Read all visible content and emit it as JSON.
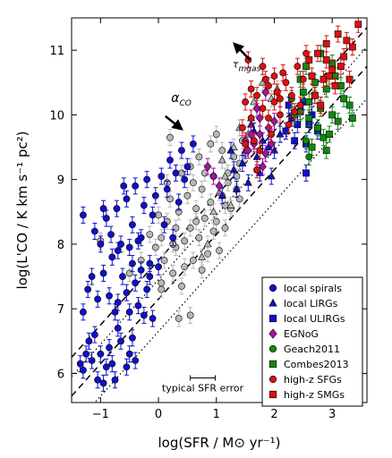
{
  "chart_data": {
    "type": "scatter",
    "xlabel": "log(SFR / M⊙ yr⁻¹)",
    "ylabel": "log(L'CO / K km s⁻¹ pc²)",
    "xlim": [
      -1.5,
      3.6
    ],
    "ylim": [
      5.55,
      11.5
    ],
    "xticks": [
      "−1",
      "0",
      "1",
      "2",
      "3"
    ],
    "xtick_values": [
      -1,
      0,
      1,
      2,
      3
    ],
    "yticks": [
      "6",
      "7",
      "8",
      "9",
      "10",
      "11"
    ],
    "ytick_values": [
      6,
      7,
      8,
      9,
      10,
      11
    ],
    "grid": false,
    "legend_position": "bottom-right",
    "reference_lines": [
      {
        "style": "dashed",
        "slope": 1,
        "intercept": 7.75
      },
      {
        "style": "dashed",
        "slope": 1,
        "intercept": 7.15
      },
      {
        "style": "dotted",
        "slope": 1,
        "intercept": 7.45
      },
      {
        "style": "dotted",
        "slope": 1,
        "intercept": 6.65
      }
    ],
    "annotations": {
      "tau": {
        "label": "τmgas",
        "sub": "mgas",
        "main": "τ",
        "x": 1.28,
        "y": 10.73,
        "arrow_from": [
          1.58,
          10.85
        ],
        "arrow_to": [
          1.31,
          11.1
        ]
      },
      "alpha": {
        "main": "α",
        "sub": "CO",
        "x": 0.22,
        "y": 10.2,
        "arrow_from": [
          0.12,
          9.98
        ],
        "arrow_to": [
          0.4,
          9.78
        ]
      },
      "sfr_error": {
        "label": "typical SFR error",
        "x_from": 0.55,
        "x_to": 0.98,
        "y": 5.82
      }
    },
    "series": [
      {
        "name": "local spirals",
        "marker": "circle",
        "color": "#1010cc",
        "points": [
          [
            -1.35,
            6.15
          ],
          [
            -1.3,
            6.05
          ],
          [
            -1.25,
            6.3
          ],
          [
            -1.2,
            6.5
          ],
          [
            -1.15,
            6.2
          ],
          [
            -1.1,
            6.6
          ],
          [
            -1.05,
            5.9
          ],
          [
            -1.0,
            6.3
          ],
          [
            -0.95,
            5.85
          ],
          [
            -0.9,
            6.1
          ],
          [
            -0.85,
            6.4
          ],
          [
            -0.8,
            6.15
          ],
          [
            -0.75,
            5.9
          ],
          [
            -0.7,
            6.7
          ],
          [
            -0.65,
            6.5
          ],
          [
            -0.55,
            6.1
          ],
          [
            -0.5,
            6.3
          ],
          [
            -0.45,
            6.55
          ],
          [
            -0.4,
            6.2
          ],
          [
            -1.3,
            6.95
          ],
          [
            -1.22,
            7.3
          ],
          [
            -1.15,
            7.5
          ],
          [
            -1.05,
            7.15
          ],
          [
            -0.95,
            7.55
          ],
          [
            -0.85,
            7.2
          ],
          [
            -0.8,
            7.8
          ],
          [
            -0.75,
            6.95
          ],
          [
            -0.7,
            7.1
          ],
          [
            -0.62,
            7.5
          ],
          [
            -0.55,
            7.25
          ],
          [
            -0.5,
            6.95
          ],
          [
            -0.45,
            7.7
          ],
          [
            -0.4,
            7.4
          ],
          [
            -0.35,
            7.05
          ],
          [
            -0.3,
            7.6
          ],
          [
            -0.25,
            6.9
          ],
          [
            -0.2,
            7.3
          ],
          [
            -0.15,
            7.5
          ],
          [
            -0.1,
            6.85
          ],
          [
            -1.1,
            8.2
          ],
          [
            -1.0,
            8.0
          ],
          [
            -0.9,
            8.4
          ],
          [
            -0.82,
            8.15
          ],
          [
            -0.72,
            8.55
          ],
          [
            -0.65,
            8.0
          ],
          [
            -0.55,
            8.7
          ],
          [
            -0.45,
            8.3
          ],
          [
            -0.4,
            8.9
          ],
          [
            -0.3,
            8.1
          ],
          [
            -0.25,
            8.6
          ],
          [
            -0.2,
            9.0
          ],
          [
            -0.1,
            8.45
          ],
          [
            -0.05,
            8.75
          ],
          [
            0.05,
            9.05
          ],
          [
            0.15,
            8.85
          ],
          [
            0.2,
            9.3
          ],
          [
            0.3,
            9.1
          ],
          [
            0.35,
            8.65
          ],
          [
            0.4,
            9.45
          ],
          [
            0.5,
            9.2
          ],
          [
            -0.6,
            8.9
          ],
          [
            -0.7,
            7.9
          ],
          [
            -0.35,
            8.05
          ],
          [
            -0.15,
            7.7
          ],
          [
            0.0,
            7.65
          ],
          [
            0.1,
            8.3
          ],
          [
            0.25,
            8.1
          ],
          [
            -1.3,
            8.45
          ],
          [
            -0.95,
            8.55
          ],
          [
            -0.5,
            7.95
          ],
          [
            0.6,
            9.55
          ],
          [
            0.45,
            9.0
          ]
        ]
      },
      {
        "name": "local LIRGs",
        "marker": "triangle",
        "color": "#1010cc",
        "points": [
          [
            1.1,
            8.75
          ],
          [
            1.3,
            9.15
          ],
          [
            1.5,
            9.45
          ],
          [
            1.7,
            9.35
          ],
          [
            1.55,
            8.95
          ],
          [
            1.8,
            9.6
          ],
          [
            1.65,
            9.75
          ],
          [
            1.9,
            9.5
          ],
          [
            1.45,
            9.25
          ],
          [
            1.35,
            8.85
          ],
          [
            1.75,
            9.1
          ],
          [
            2.0,
            9.45
          ],
          [
            1.6,
            9.85
          ],
          [
            2.1,
            9.7
          ],
          [
            1.25,
            9.45
          ],
          [
            1.95,
            9.05
          ]
        ]
      },
      {
        "name": "local ULIRGs",
        "marker": "square",
        "color": "#1010cc",
        "points": [
          [
            2.3,
            9.95
          ],
          [
            2.45,
            10.05
          ],
          [
            2.2,
            9.75
          ],
          [
            2.6,
            9.85
          ],
          [
            2.5,
            10.2
          ],
          [
            2.35,
            9.6
          ],
          [
            2.55,
            9.55
          ],
          [
            2.65,
            10.0
          ],
          [
            2.4,
            9.85
          ],
          [
            2.75,
            9.75
          ],
          [
            2.25,
            10.15
          ],
          [
            2.55,
            9.1
          ]
        ]
      },
      {
        "name": "EGNoG",
        "marker": "diamond",
        "color": "#aa10aa",
        "points": [
          [
            0.85,
            9.2
          ],
          [
            0.95,
            9.05
          ],
          [
            1.05,
            8.9
          ],
          [
            1.75,
            9.95
          ],
          [
            1.85,
            10.35
          ],
          [
            1.6,
            9.7
          ],
          [
            1.7,
            10.1
          ],
          [
            1.9,
            9.8
          ],
          [
            1.55,
            9.45
          ],
          [
            1.8,
            9.2
          ],
          [
            1.65,
            9.55
          ],
          [
            2.0,
            9.9
          ],
          [
            1.5,
            9.6
          ],
          [
            1.95,
            9.55
          ],
          [
            1.75,
            9.7
          ],
          [
            1.85,
            9.4
          ]
        ]
      },
      {
        "name": "Geach2011",
        "marker": "circle",
        "color": "#108810",
        "points": [
          [
            2.45,
            10.05
          ],
          [
            2.55,
            9.6
          ],
          [
            2.3,
            10.25
          ],
          [
            2.6,
            9.35
          ]
        ]
      },
      {
        "name": "Combes2013",
        "marker": "square",
        "color": "#108810",
        "points": [
          [
            2.35,
            10.0
          ],
          [
            2.5,
            10.35
          ],
          [
            2.6,
            10.2
          ],
          [
            2.7,
            10.5
          ],
          [
            2.8,
            10.1
          ],
          [
            2.9,
            10.4
          ],
          [
            2.75,
            9.8
          ],
          [
            2.85,
            9.65
          ],
          [
            3.0,
            10.0
          ],
          [
            3.1,
            9.9
          ],
          [
            3.2,
            10.25
          ],
          [
            3.35,
            9.95
          ],
          [
            2.65,
            9.5
          ],
          [
            2.95,
            9.7
          ],
          [
            3.05,
            10.6
          ],
          [
            2.55,
            10.75
          ],
          [
            2.8,
            10.95
          ],
          [
            3.15,
            10.45
          ],
          [
            2.45,
            10.55
          ],
          [
            2.6,
            9.95
          ],
          [
            3.3,
            10.15
          ],
          [
            2.9,
            9.45
          ],
          [
            2.7,
            10.3
          ],
          [
            3.0,
            10.8
          ]
        ]
      },
      {
        "name": "high-z SFGs",
        "marker": "circle",
        "color": "#dd1010",
        "points": [
          [
            1.55,
            10.85
          ],
          [
            1.5,
            10.2
          ],
          [
            1.6,
            9.95
          ],
          [
            1.7,
            10.3
          ],
          [
            1.8,
            10.1
          ],
          [
            1.9,
            10.45
          ],
          [
            2.0,
            10.2
          ],
          [
            2.1,
            10.0
          ],
          [
            2.2,
            10.5
          ],
          [
            2.05,
            10.35
          ],
          [
            1.65,
            9.6
          ],
          [
            1.75,
            9.45
          ],
          [
            1.95,
            9.7
          ],
          [
            2.15,
            10.65
          ],
          [
            2.3,
            10.3
          ],
          [
            2.4,
            10.75
          ],
          [
            1.85,
            10.55
          ],
          [
            1.45,
            9.8
          ],
          [
            2.5,
            10.55
          ],
          [
            2.25,
            9.85
          ],
          [
            1.6,
            10.4
          ],
          [
            2.35,
            10.05
          ],
          [
            1.7,
            9.15
          ],
          [
            1.9,
            9.95
          ],
          [
            2.0,
            10.6
          ],
          [
            2.55,
            10.95
          ],
          [
            1.8,
            10.75
          ],
          [
            2.1,
            10.25
          ],
          [
            1.5,
            9.55
          ],
          [
            2.45,
            10.15
          ]
        ]
      },
      {
        "name": "high-z SMGs",
        "marker": "square",
        "color": "#dd1010",
        "points": [
          [
            2.6,
            10.85
          ],
          [
            2.75,
            10.95
          ],
          [
            2.9,
            11.1
          ],
          [
            3.0,
            10.7
          ],
          [
            3.1,
            11.25
          ],
          [
            3.2,
            10.9
          ],
          [
            3.35,
            11.05
          ],
          [
            3.45,
            11.4
          ],
          [
            2.85,
            10.55
          ],
          [
            3.05,
            10.45
          ],
          [
            2.7,
            10.3
          ],
          [
            2.95,
            10.6
          ],
          [
            3.15,
            10.75
          ],
          [
            2.8,
            10.15
          ],
          [
            3.25,
            11.15
          ],
          [
            2.65,
            10.6
          ],
          [
            3.3,
            10.55
          ],
          [
            2.9,
            10.85
          ]
        ]
      },
      {
        "name": "gray",
        "marker": "circle",
        "color": "#b8b8b8",
        "points": [
          [
            -1.0,
            8.05
          ],
          [
            -0.5,
            7.55
          ],
          [
            -0.3,
            7.75
          ],
          [
            -0.15,
            8.15
          ],
          [
            -0.05,
            7.95
          ],
          [
            0.0,
            8.45
          ],
          [
            0.05,
            7.4
          ],
          [
            0.1,
            7.75
          ],
          [
            0.15,
            8.35
          ],
          [
            0.2,
            8.7
          ],
          [
            0.25,
            7.55
          ],
          [
            0.3,
            7.95
          ],
          [
            0.35,
            8.5
          ],
          [
            0.4,
            7.35
          ],
          [
            0.45,
            8.05
          ],
          [
            0.5,
            8.75
          ],
          [
            0.55,
            8.25
          ],
          [
            0.6,
            7.75
          ],
          [
            0.65,
            8.55
          ],
          [
            0.7,
            8.1
          ],
          [
            0.75,
            8.85
          ],
          [
            0.8,
            8.4
          ],
          [
            0.85,
            7.85
          ],
          [
            0.9,
            8.65
          ],
          [
            0.95,
            9.05
          ],
          [
            1.0,
            8.35
          ],
          [
            1.05,
            7.9
          ],
          [
            1.1,
            8.75
          ],
          [
            1.15,
            8.25
          ],
          [
            1.2,
            9.1
          ],
          [
            1.25,
            8.55
          ],
          [
            1.3,
            9.35
          ],
          [
            1.35,
            8.85
          ],
          [
            1.4,
            9.25
          ],
          [
            1.45,
            9.6
          ],
          [
            0.55,
            6.9
          ],
          [
            0.35,
            6.85
          ],
          [
            0.05,
            7.3
          ],
          [
            0.2,
            9.65
          ],
          [
            0.9,
            9.55
          ],
          [
            0.55,
            9.2
          ],
          [
            0.7,
            9.35
          ],
          [
            1.0,
            9.7
          ],
          [
            1.1,
            9.45
          ],
          [
            0.4,
            9.1
          ],
          [
            0.15,
            8.95
          ],
          [
            0.6,
            8.95
          ],
          [
            0.8,
            9.1
          ],
          [
            1.2,
            8.95
          ],
          [
            0.3,
            8.25
          ],
          [
            0.05,
            8.1
          ],
          [
            0.45,
            7.65
          ],
          [
            0.75,
            7.6
          ],
          [
            0.95,
            8.2
          ],
          [
            1.15,
            8.6
          ],
          [
            1.35,
            9.05
          ],
          [
            1.5,
            9.4
          ],
          [
            1.4,
            8.7
          ],
          [
            0.65,
            8.35
          ],
          [
            0.25,
            8.0
          ]
        ]
      },
      {
        "name": "gray-tri",
        "marker": "triangle",
        "color": "#b8b8b8",
        "points": [
          [
            0.85,
            8.0
          ],
          [
            0.95,
            8.5
          ],
          [
            1.05,
            8.8
          ],
          [
            1.15,
            9.05
          ],
          [
            1.25,
            8.6
          ],
          [
            1.3,
            9.5
          ],
          [
            1.4,
            9.8
          ],
          [
            1.55,
            9.7
          ],
          [
            1.65,
            10.2
          ],
          [
            1.8,
            10.5
          ],
          [
            2.05,
            10.4
          ],
          [
            1.95,
            10.25
          ],
          [
            0.75,
            7.8
          ],
          [
            1.1,
            9.3
          ],
          [
            1.6,
            9.95
          ]
        ]
      }
    ],
    "legend": [
      {
        "label": "local spirals",
        "marker": "circle",
        "color": "#1010cc"
      },
      {
        "label": "local LIRGs",
        "marker": "triangle",
        "color": "#1010cc"
      },
      {
        "label": "local ULIRGs",
        "marker": "square",
        "color": "#1010cc"
      },
      {
        "label": "EGNoG",
        "marker": "diamond",
        "color": "#aa10aa"
      },
      {
        "label": "Geach2011",
        "marker": "circle",
        "color": "#108810"
      },
      {
        "label": "Combes2013",
        "marker": "square",
        "color": "#108810"
      },
      {
        "label": "high-z SFGs",
        "marker": "circle",
        "color": "#dd1010"
      },
      {
        "label": "high-z SMGs",
        "marker": "square",
        "color": "#dd1010"
      }
    ]
  }
}
